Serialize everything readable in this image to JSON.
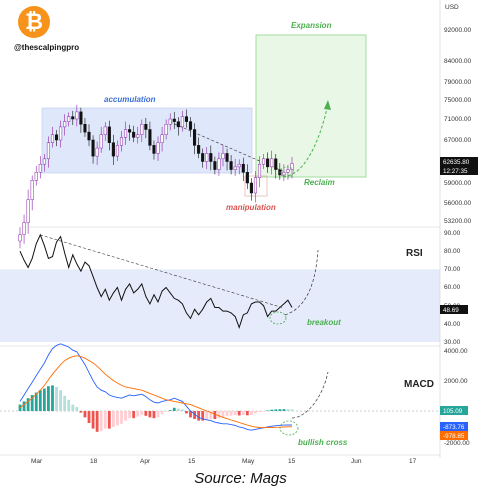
{
  "handle": "@thescalpingpro",
  "logo_glyph": "₿",
  "caption": "Source: Mags",
  "colors": {
    "up": "#26a69a",
    "down": "#ef5350",
    "candle_body": "#111111",
    "accumulation_box": "#dfe8fb",
    "expansion_box": "#e9f8e6",
    "green_annotation": "#4caf50",
    "red_annotation": "#d9534f",
    "blue_annotation": "#3a6fd8",
    "macd_line": "#2962ff",
    "signal_line": "#ff6d00",
    "rsi_band": "#e5ebfa"
  },
  "chart_data": [
    {
      "type": "candlestick",
      "panel": "price",
      "currency": "USD",
      "y_ticks": [
        "92000.00",
        "84000.00",
        "79000.00",
        "75000.00",
        "71000.00",
        "67000.00",
        "59000.00",
        "56000.00",
        "53200.00"
      ],
      "y_tick_values": [
        92000,
        84000,
        79000,
        75000,
        71000,
        67000,
        59000,
        56000,
        53200
      ],
      "last_price": "62635.80",
      "countdown": "12:27:35",
      "x_tick_labels": [
        "Mar",
        "18",
        "Apr",
        "15",
        "May",
        "15",
        "Jun",
        "17"
      ],
      "annotations": {
        "accumulation": "accumulation",
        "manipulation": "manipulation",
        "expansion": "Expansion",
        "reclaim": "Reclaim"
      },
      "closes": [
        51500,
        53000,
        56500,
        59500,
        61000,
        62500,
        63500,
        66500,
        68000,
        67000,
        69500,
        70500,
        71500,
        71000,
        72500,
        70000,
        68500,
        67000,
        64000,
        65500,
        68000,
        69500,
        66500,
        64000,
        66000,
        67500,
        69000,
        68500,
        67500,
        68000,
        70000,
        69000,
        66000,
        64500,
        66500,
        68000,
        70000,
        71000,
        70500,
        69500,
        71500,
        70500,
        69000,
        66000,
        64500,
        63000,
        64500,
        63000,
        61500,
        63500,
        64500,
        63000,
        61500,
        62000,
        62500,
        61000,
        59000,
        57500,
        60000,
        62500,
        63500,
        62000,
        63500,
        61500,
        60500,
        61000,
        61500,
        62635
      ]
    },
    {
      "type": "line",
      "panel": "indicator",
      "title": "RSI",
      "y_ticks": [
        "90.00",
        "80.00",
        "70.00",
        "60.00",
        "50.00",
        "40.00",
        "30.00"
      ],
      "y_tick_values": [
        90,
        80,
        70,
        60,
        50,
        40,
        30
      ],
      "last_value": "48.69",
      "annotations": {
        "breakout": "breakout"
      },
      "values": [
        80,
        75,
        71,
        76,
        84,
        89,
        83,
        76,
        77,
        85,
        88,
        79,
        71,
        78,
        73,
        69,
        74,
        72,
        66,
        60,
        55,
        59,
        53,
        57,
        60,
        53,
        59,
        62,
        57,
        59,
        62,
        55,
        51,
        56,
        52,
        58,
        60,
        57,
        54,
        53,
        51,
        46,
        43,
        48,
        45,
        48,
        52,
        54,
        49,
        49,
        47,
        47,
        46,
        44,
        38,
        45,
        46,
        51,
        52,
        52,
        50,
        44,
        47,
        47,
        49,
        51,
        53,
        49
      ]
    },
    {
      "type": "line",
      "panel": "indicator",
      "title": "MACD",
      "y_ticks": [
        "4000.00",
        "2000.00",
        "-2000.00"
      ],
      "y_tick_values": [
        4000,
        2000,
        -2000
      ],
      "value_labels": [
        "105.09",
        "-873.76",
        "-978.85"
      ],
      "annotations": {
        "bullish_cross": "bullish cross"
      },
      "series": [
        {
          "values": [
            600,
            1000,
            1400,
            1800,
            2200,
            2600,
            3000,
            3500,
            3900,
            4100,
            4200,
            4100,
            4000,
            3800,
            3700,
            3300,
            2900,
            2400,
            1900,
            1500,
            1300,
            1200,
            1000,
            900,
            850,
            800,
            900,
            1000,
            950,
            1000,
            1050,
            900,
            700,
            550,
            500,
            600,
            650,
            700,
            800,
            700,
            600,
            300,
            0,
            -200,
            -400,
            -500,
            -550,
            -600,
            -700,
            -750,
            -800,
            -800,
            -850,
            -900,
            -1000,
            -1050,
            -1150,
            -1200,
            -1150,
            -1100,
            -1050,
            -1000,
            -950,
            -920,
            -900,
            -880,
            -875,
            -874
          ]
        },
        {
          "values": [
            200,
            400,
            600,
            800,
            1050,
            1300,
            1600,
            1950,
            2300,
            2600,
            2900,
            3150,
            3300,
            3400,
            3450,
            3400,
            3300,
            3150,
            3000,
            2800,
            2550,
            2300,
            2100,
            1900,
            1750,
            1600,
            1500,
            1450,
            1400,
            1350,
            1300,
            1200,
            1100,
            1000,
            900,
            800,
            700,
            650,
            600,
            550,
            500,
            450,
            400,
            300,
            200,
            100,
            0,
            -100,
            -200,
            -300,
            -400,
            -480,
            -560,
            -640,
            -720,
            -800,
            -880,
            -950,
            -1000,
            -1030,
            -1040,
            -1035,
            -1030,
            -1020,
            -1010,
            -1000,
            -990,
            -979
          ]
        }
      ],
      "histogram": [
        400,
        600,
        800,
        1000,
        1150,
        1300,
        1400,
        1550,
        1600,
        1500,
        1300,
        950,
        700,
        400,
        250,
        -100,
        -400,
        -750,
        -1100,
        -1300,
        -1250,
        -1100,
        -1100,
        -1000,
        -900,
        -800,
        -600,
        -450,
        -450,
        -350,
        -250,
        -300,
        -400,
        -450,
        -400,
        -200,
        -50,
        50,
        200,
        150,
        100,
        -150,
        -400,
        -500,
        -600,
        -600,
        -550,
        -500,
        -500,
        -450,
        -400,
        -320,
        -290,
        -260,
        -280,
        -250,
        -270,
        -250,
        -150,
        -70,
        -10,
        35,
        80,
        100,
        110,
        120,
        115,
        105
      ]
    }
  ]
}
